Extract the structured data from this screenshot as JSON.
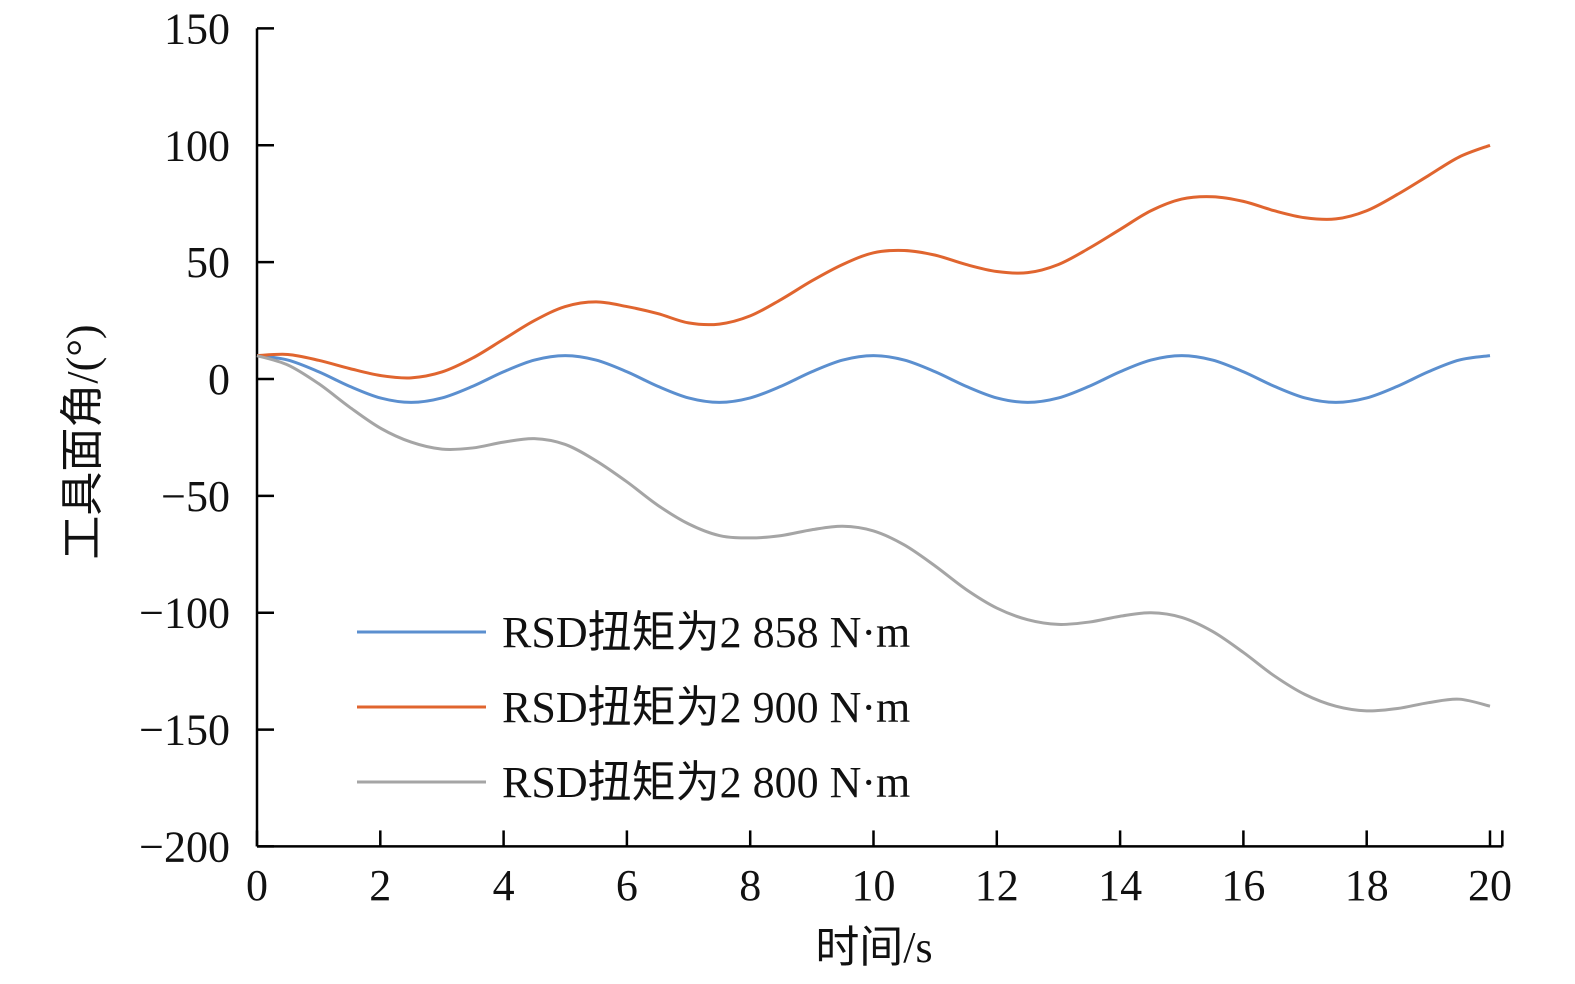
{
  "chart_data": {
    "type": "line",
    "title": "",
    "xlabel": "时间/s",
    "ylabel": "工具面角/(°)",
    "xlim": [
      0,
      20.2
    ],
    "ylim": [
      -200,
      150
    ],
    "xticks": [
      0,
      2,
      4,
      6,
      8,
      10,
      12,
      14,
      16,
      18,
      20
    ],
    "yticks": [
      150,
      100,
      50,
      0,
      -50,
      -100,
      -150,
      -200
    ],
    "xtick_labels": [
      "0",
      "2",
      "4",
      "6",
      "8",
      "10",
      "12",
      "14",
      "16",
      "18",
      "20"
    ],
    "ytick_labels": [
      "150",
      "100",
      "50",
      "0",
      "−50",
      "−100",
      "−150",
      "−200"
    ],
    "grid": false,
    "legend_position": "lower-left",
    "x": [
      0,
      0.5,
      1,
      1.5,
      2,
      2.5,
      3,
      3.5,
      4,
      4.5,
      5,
      5.5,
      6,
      6.5,
      7,
      7.5,
      8,
      8.5,
      9,
      9.5,
      10,
      10.5,
      11,
      11.5,
      12,
      12.5,
      13,
      13.5,
      14,
      14.5,
      15,
      15.5,
      16,
      16.5,
      17,
      17.5,
      18,
      18.5,
      19,
      19.5,
      20
    ],
    "series": [
      {
        "name": "RSD扭矩为2 858 N·m",
        "color": "#5b8fcf",
        "values": [
          10,
          8.1,
          3.1,
          -3.1,
          -8.1,
          -10,
          -8.1,
          -3.1,
          3.1,
          8.1,
          10,
          8.1,
          3.1,
          -3.1,
          -8.1,
          -10,
          -8.1,
          -3.1,
          3.1,
          8.1,
          10,
          8.1,
          3.1,
          -3.1,
          -8.1,
          -10,
          -8.1,
          -3.1,
          3.1,
          8.1,
          10,
          8.1,
          3.1,
          -3.1,
          -8.1,
          -10,
          -8.1,
          -3.1,
          3.1,
          8.1,
          10
        ]
      },
      {
        "name": "RSD扭矩为2 900 N·m",
        "color": "#e0652f",
        "values": [
          10,
          10.5,
          8,
          4.5,
          1.5,
          0.5,
          3,
          9,
          17,
          25,
          31,
          33,
          31,
          28,
          24,
          23.5,
          27,
          34,
          42,
          49,
          54,
          55,
          53,
          49,
          46,
          45.5,
          49,
          56,
          64,
          72,
          77,
          78,
          76,
          72,
          69,
          68.5,
          72,
          79,
          87,
          95,
          100
        ]
      },
      {
        "name": "RSD扭矩为2 800 N·m",
        "color": "#a5a5a5",
        "values": [
          10,
          6,
          -2,
          -12,
          -21,
          -27,
          -30,
          -29.5,
          -27,
          -25.5,
          -28,
          -35,
          -44,
          -54,
          -62,
          -67,
          -68,
          -67,
          -64.5,
          -63,
          -65,
          -71,
          -80,
          -90,
          -98,
          -103,
          -105,
          -104,
          -101.5,
          -100,
          -102,
          -108,
          -117,
          -127,
          -135,
          -140,
          -142,
          -141,
          -138.5,
          -137,
          -140
        ]
      }
    ]
  }
}
